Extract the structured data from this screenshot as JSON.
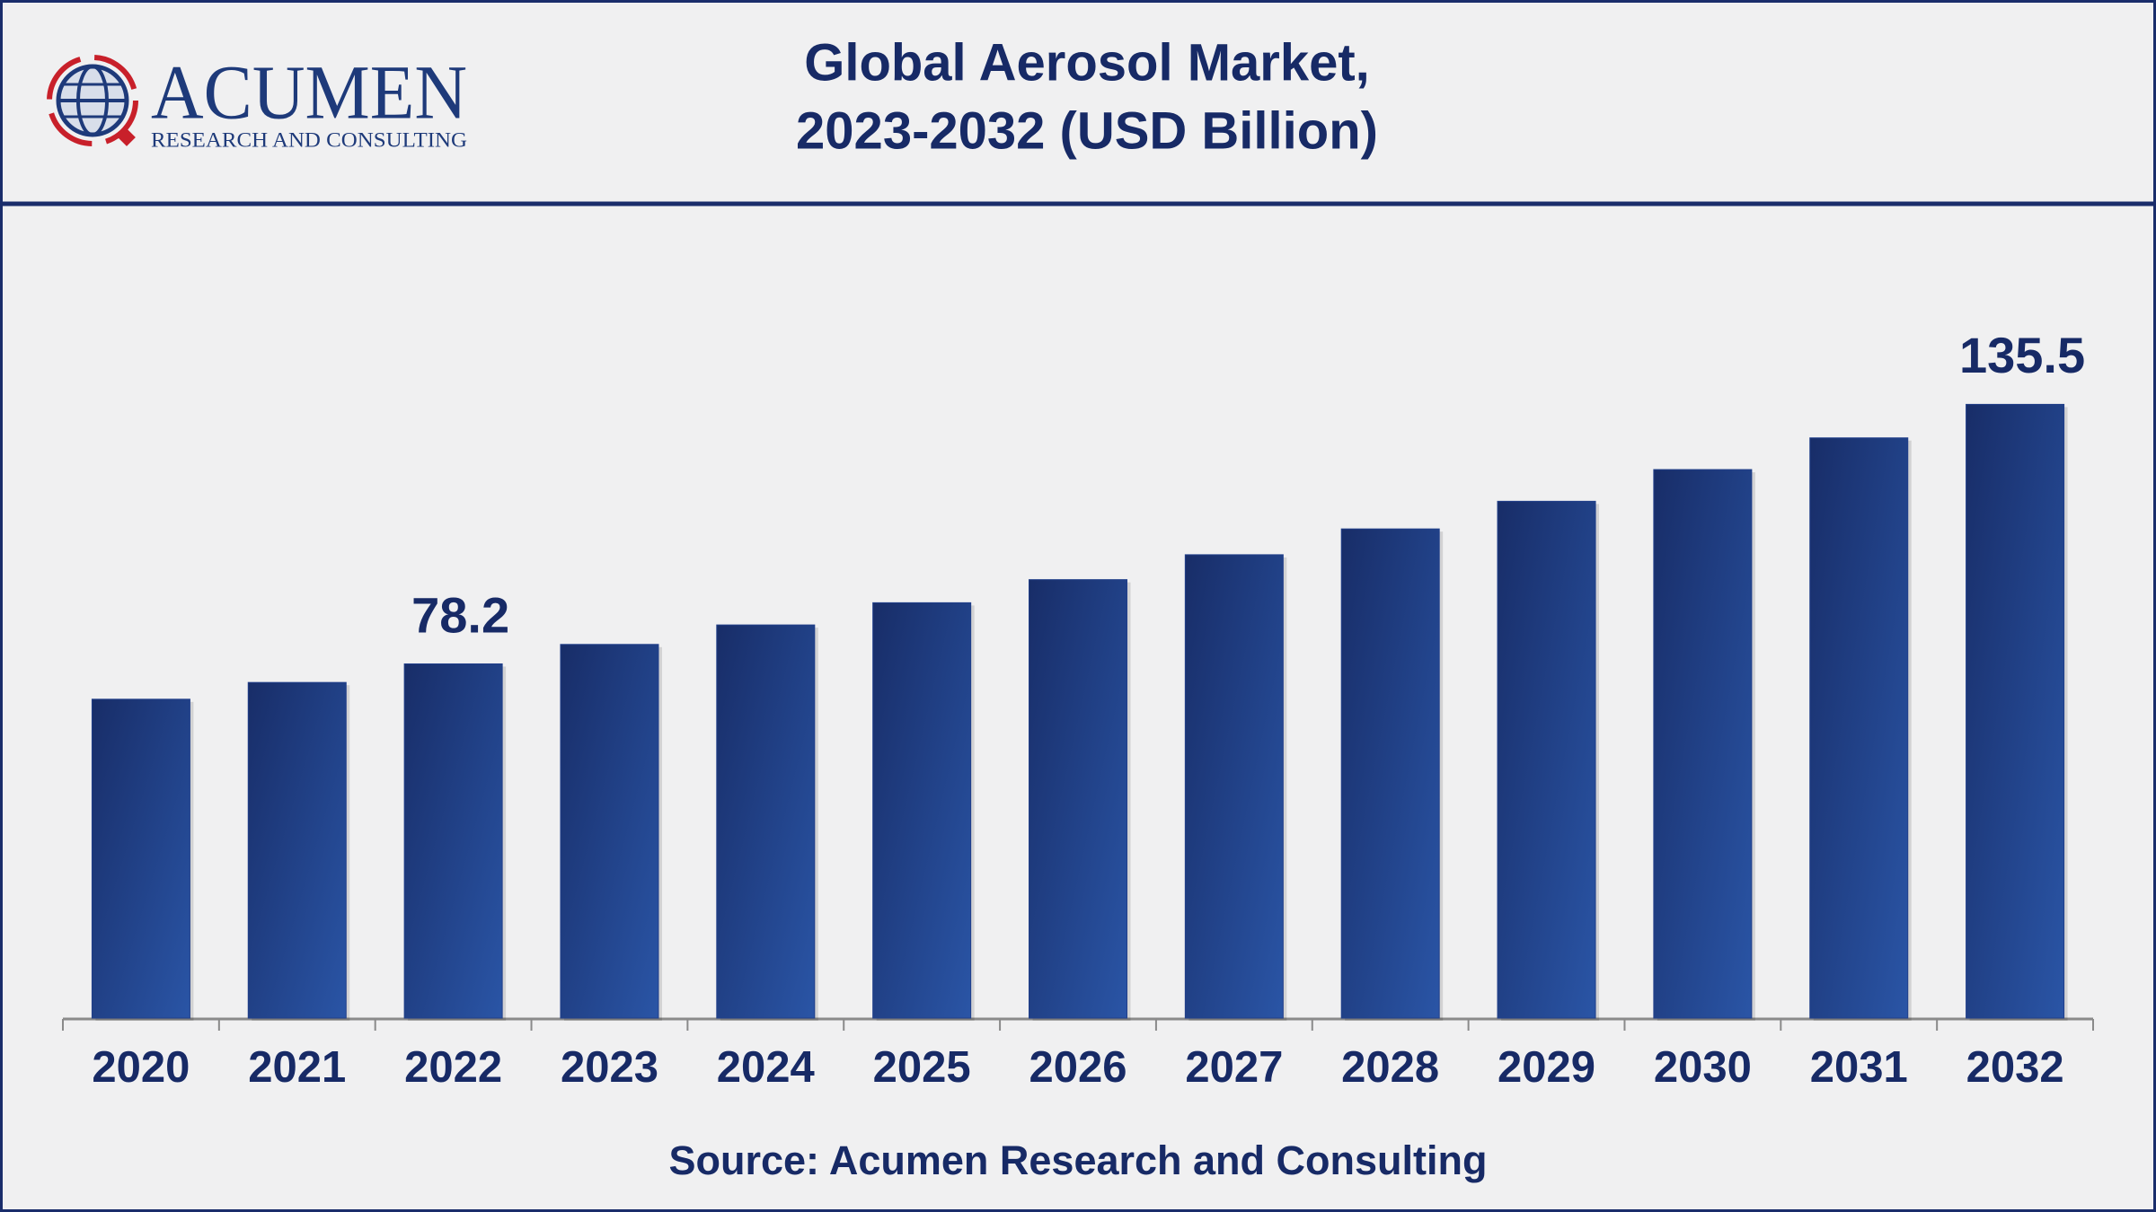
{
  "logo": {
    "name": "ACUMEN",
    "tagline": "RESEARCH AND CONSULTING"
  },
  "chart_data": {
    "type": "bar",
    "title": [
      "Global Aerosol Market,",
      "2023-2032 (USD Billion)"
    ],
    "categories": [
      "2020",
      "2021",
      "2022",
      "2023",
      "2024",
      "2025",
      "2026",
      "2027",
      "2028",
      "2029",
      "2030",
      "2031",
      "2032"
    ],
    "values": [
      70.4,
      74.1,
      78.2,
      82.5,
      86.8,
      91.7,
      96.8,
      102.3,
      108.0,
      114.1,
      121.1,
      128.1,
      135.5
    ],
    "value_labels": [
      null,
      null,
      "78.2",
      null,
      null,
      null,
      null,
      null,
      null,
      null,
      null,
      null,
      "135.5"
    ],
    "color": "#213f8a",
    "source": "Source: Acumen Research and Consulting"
  }
}
